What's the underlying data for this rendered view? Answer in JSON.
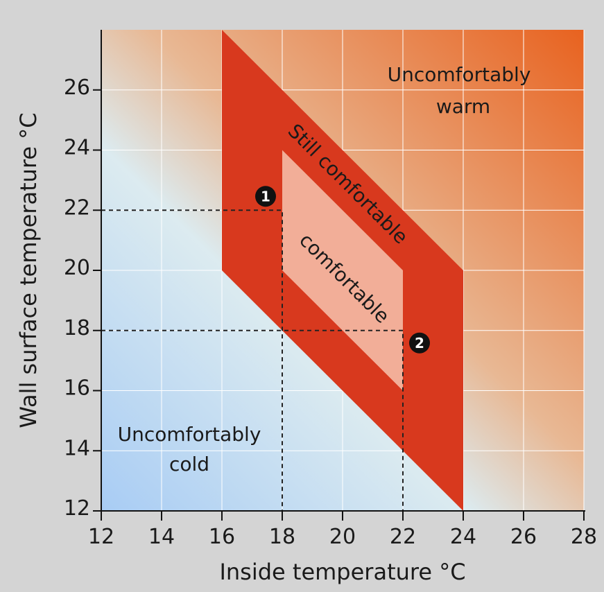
{
  "chart_data": {
    "type": "area",
    "title": "",
    "xlabel": "Inside temperature  °C",
    "ylabel": "Wall surface temperature °C",
    "xlim": [
      12,
      28
    ],
    "ylim": [
      12,
      28
    ],
    "xticks": [
      12,
      14,
      16,
      18,
      20,
      22,
      24,
      26,
      28
    ],
    "yticks": [
      12,
      14,
      16,
      18,
      20,
      22,
      24,
      26
    ],
    "grid": true,
    "background_gradient": {
      "cold_color": "#a8ccf4",
      "mid_color": "#dcebf0",
      "warm_color": "#e8621f"
    },
    "regions": [
      {
        "name": "Still comfortable",
        "color": "#d8391e",
        "polygon": [
          [
            16,
            28
          ],
          [
            24,
            20
          ],
          [
            24,
            12
          ],
          [
            16,
            20
          ]
        ]
      },
      {
        "name": "comfortable",
        "color": "#f2ae98",
        "polygon": [
          [
            18,
            24
          ],
          [
            22,
            20
          ],
          [
            22,
            16
          ],
          [
            18,
            20
          ]
        ]
      }
    ],
    "zone_labels": {
      "warm_line1": "Uncomfortably",
      "warm_line2": "warm",
      "cold_line1": "Uncomfortably",
      "cold_line2": "cold",
      "still": "Still comfortable",
      "comfortable": "comfortable"
    },
    "points": [
      {
        "label": "1",
        "x": 18,
        "y": 22
      },
      {
        "label": "2",
        "x": 22,
        "y": 18
      }
    ],
    "colors": {
      "marker": "#111111",
      "dash": "#222222"
    }
  }
}
